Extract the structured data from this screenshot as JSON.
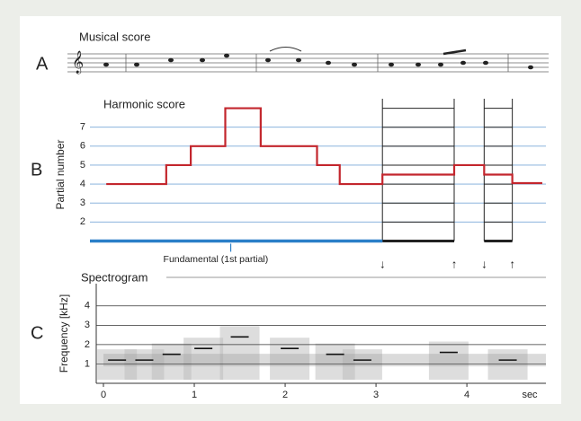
{
  "score": {
    "panel": "A",
    "title": "Musical score"
  },
  "chart_data": [
    {
      "type": "step",
      "panel": "B",
      "title": "Harmonic score",
      "y_label": "Partial number",
      "annotation": "Fundamental (1st partial)",
      "annotation_x": 1.4,
      "xlim": [
        -0.15,
        4.87
      ],
      "ylim": [
        0.5,
        8.5
      ],
      "yticks": [
        2,
        3,
        4,
        5,
        6,
        7
      ],
      "grid": true,
      "series": [
        {
          "color": "#c3262d",
          "x": [
            0.03,
            0.69,
            0.96,
            1.34,
            1.73,
            2.35,
            2.6,
            3.07,
            3.86,
            4.19,
            4.5,
            4.83
          ],
          "values": [
            4,
            5,
            6,
            8,
            6,
            5,
            4,
            4.5,
            5,
            4.5,
            4.05,
            4.05
          ]
        },
        {
          "color": "#2a7fc8",
          "x": [
            -0.15,
            3.07
          ],
          "values": [
            1,
            1
          ]
        }
      ],
      "harmonic_segments": [
        [
          3.07,
          3.86
        ],
        [
          4.19,
          4.5
        ]
      ],
      "harmonic_partials": [
        1,
        2,
        3,
        4,
        5,
        6,
        7,
        8
      ]
    },
    {
      "type": "spectrogram",
      "panel": "C",
      "title": "Spectrogram",
      "y_label": "Frequency [kHz]",
      "x_label": "sec",
      "xlim": [
        0,
        4.87
      ],
      "ylim": [
        0,
        5.15
      ],
      "xticks": [
        0,
        1,
        2,
        3,
        4
      ],
      "yticks": [
        1,
        2,
        3,
        4
      ],
      "grid": true,
      "x": [
        0.15,
        0.45,
        0.75,
        1.1,
        1.5,
        2.05,
        2.55,
        2.85,
        3.8,
        4.45
      ],
      "values": [
        1.2,
        1.2,
        1.5,
        1.8,
        2.4,
        1.8,
        1.5,
        1.2,
        1.6,
        1.2
      ],
      "color": "#111"
    }
  ]
}
